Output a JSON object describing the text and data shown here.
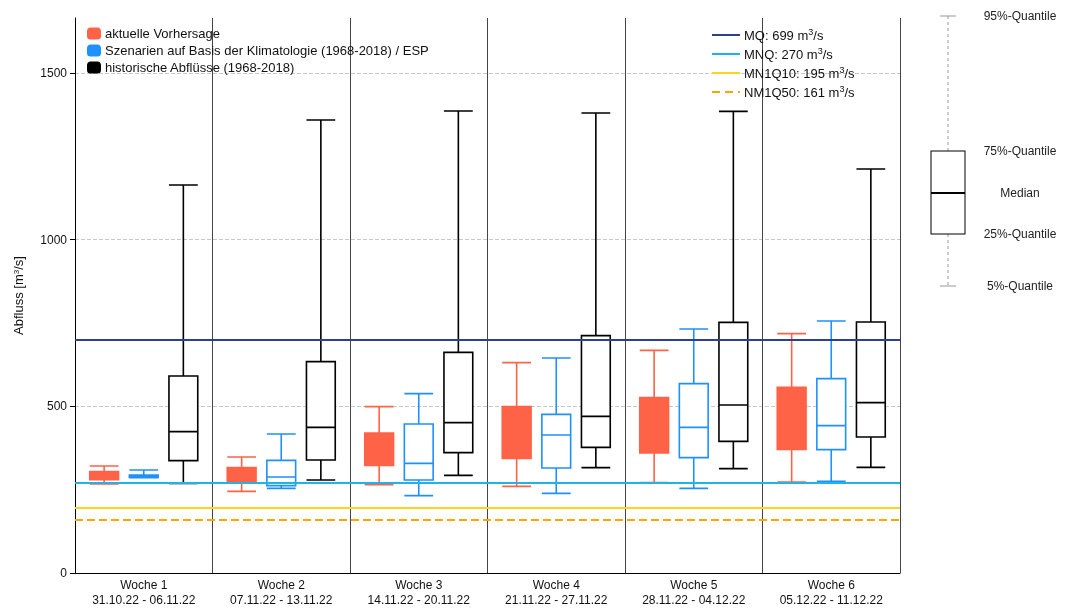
{
  "chart_data": {
    "type": "box",
    "ylabel": "Abfluss [m$^{3}$/s]",
    "categories": [
      "Woche 1\n31.10.22 - 06.11.22",
      "Woche 2\n07.11.22 - 13.11.22",
      "Woche 3\n14.11.22 - 20.11.22",
      "Woche 4\n21.11.22 - 27.11.22",
      "Woche 5\n28.11.22 - 04.12.22",
      "Woche 6\n05.12.22 - 11.12.22"
    ],
    "ylim": [
      0,
      1665
    ],
    "yticks": [
      0,
      500,
      1000,
      1500
    ],
    "grid": true,
    "legend": "top left",
    "series": [
      {
        "name": "aktuelle Vorhersage",
        "color": "#ff6347",
        "boxes": [
          {
            "low": 267,
            "q1": 280,
            "median": 292,
            "q3": 304,
            "high": 321
          },
          {
            "low": 245,
            "q1": 271,
            "median": 292,
            "q3": 316,
            "high": 348
          },
          {
            "low": 265,
            "q1": 323,
            "median": 369,
            "q3": 420,
            "high": 499
          },
          {
            "low": 260,
            "q1": 344,
            "median": 418,
            "q3": 499,
            "high": 631
          },
          {
            "low": 271,
            "q1": 360,
            "median": 440,
            "q3": 526,
            "high": 668
          },
          {
            "low": 273,
            "q1": 371,
            "median": 458,
            "q3": 557,
            "high": 718
          }
        ]
      },
      {
        "name": "Szenarien auf Basis der Klimatologie (1968-2018) / ESP",
        "color": "#1e90ff",
        "boxes": [
          {
            "low": 286,
            "q1": 287,
            "median": 291,
            "q3": 294,
            "high": 309
          },
          {
            "low": 254,
            "q1": 262,
            "median": 288,
            "q3": 338,
            "high": 417
          },
          {
            "low": 232,
            "q1": 279,
            "median": 329,
            "q3": 447,
            "high": 538
          },
          {
            "low": 239,
            "q1": 315,
            "median": 414,
            "q3": 476,
            "high": 645
          },
          {
            "low": 254,
            "q1": 346,
            "median": 437,
            "q3": 568,
            "high": 732
          },
          {
            "low": 275,
            "q1": 370,
            "median": 442,
            "q3": 583,
            "high": 756
          }
        ]
      },
      {
        "name": "historische Abflüsse (1968-2018)",
        "color": "#000000",
        "boxes": [
          {
            "low": 269,
            "q1": 337,
            "median": 424,
            "q3": 591,
            "high": 1164
          },
          {
            "low": 279,
            "q1": 339,
            "median": 437,
            "q3": 634,
            "high": 1359
          },
          {
            "low": 293,
            "q1": 361,
            "median": 451,
            "q3": 662,
            "high": 1386
          },
          {
            "low": 316,
            "q1": 377,
            "median": 470,
            "q3": 712,
            "high": 1380
          },
          {
            "low": 313,
            "q1": 395,
            "median": 504,
            "q3": 752,
            "high": 1385
          },
          {
            "low": 317,
            "q1": 408,
            "median": 511,
            "q3": 753,
            "high": 1212
          }
        ]
      }
    ],
    "ref_lines": [
      {
        "axis": "y",
        "value": 699,
        "label": "MQ: 699 m$^{3}$/s",
        "color": "#2e3f8f",
        "line_style": "solid"
      },
      {
        "axis": "y",
        "value": 270,
        "label": "MNQ: 270 m$^{3}$/s",
        "color": "#1fb4e8",
        "line_style": "solid"
      },
      {
        "axis": "y",
        "value": 195,
        "label": "MN1Q10: 195 m$^{3}$/s",
        "color": "#ffd21f",
        "line_style": "solid"
      },
      {
        "axis": "y",
        "value": 161,
        "label": "NM1Q50: 161 m$^{3}$/s",
        "color": "#ffa500",
        "line_style": "dashed"
      }
    ],
    "annotations": [
      "95%-Quantile",
      "75%-Quantile",
      "Median",
      "25%-Quantile",
      "5%-Quantile"
    ]
  }
}
